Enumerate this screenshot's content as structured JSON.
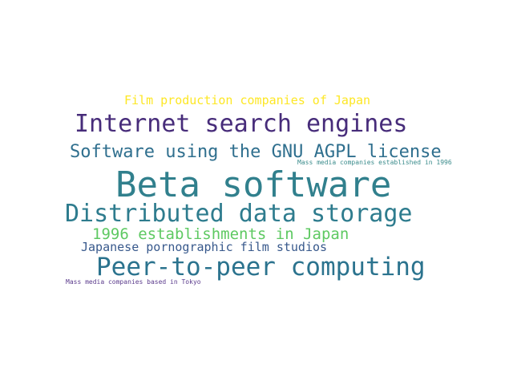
{
  "word_cloud": {
    "words": [
      {
        "text": "Beta software",
        "color": "#31808d"
      },
      {
        "text": "Distributed data storage",
        "color": "#2e7c8e"
      },
      {
        "text": "Peer-to-peer computing",
        "color": "#2b738e"
      },
      {
        "text": "Internet search engines",
        "color": "#472c7a"
      },
      {
        "text": "Software using the GNU AGPL license",
        "color": "#2f6f8e"
      },
      {
        "text": "1996 establishments in Japan",
        "color": "#5ec962"
      },
      {
        "text": "Japanese pornographic film studios",
        "color": "#38598c"
      },
      {
        "text": "Film production companies of Japan",
        "color": "#fde725"
      },
      {
        "text": "Mass media companies established in 1996",
        "color": "#3b8c8c"
      },
      {
        "text": "Mass media companies based in Tokyo",
        "color": "#5b3b8c"
      }
    ]
  }
}
